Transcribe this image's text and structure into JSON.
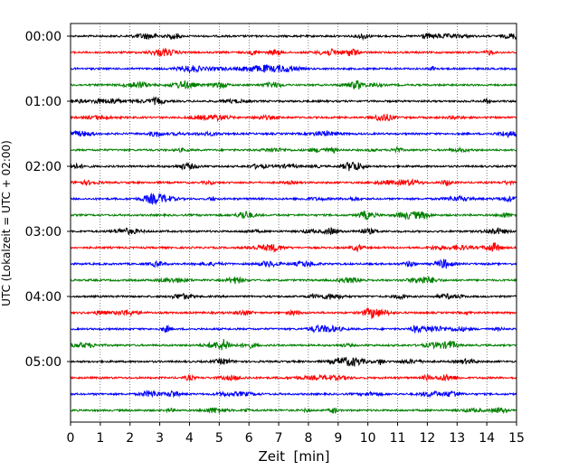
{
  "chart_data": {
    "type": "line",
    "subtype": "seismogram-helicorder",
    "title": "",
    "xlabel": "Zeit  [min]",
    "ylabel": "UTC (Lokalzeit = UTC + 02:00)",
    "xlim": [
      0,
      15
    ],
    "x_ticks": [
      "0",
      "1",
      "2",
      "3",
      "4",
      "5",
      "6",
      "7",
      "8",
      "9",
      "10",
      "11",
      "12",
      "13",
      "14",
      "15"
    ],
    "y_tick_labels": [
      "00:00",
      "01:00",
      "02:00",
      "03:00",
      "04:00",
      "05:00"
    ],
    "grid": "vertical dotted lines at each minute",
    "trace_colors": [
      "#000000",
      "#ff0000",
      "#0000ff",
      "#008000"
    ],
    "traces": [
      {
        "start": "00:00",
        "color_index": 0
      },
      {
        "start": "00:15",
        "color_index": 1
      },
      {
        "start": "00:30",
        "color_index": 2
      },
      {
        "start": "00:45",
        "color_index": 3
      },
      {
        "start": "01:00",
        "color_index": 0
      },
      {
        "start": "01:15",
        "color_index": 1
      },
      {
        "start": "01:30",
        "color_index": 2
      },
      {
        "start": "01:45",
        "color_index": 3
      },
      {
        "start": "02:00",
        "color_index": 0
      },
      {
        "start": "02:15",
        "color_index": 1
      },
      {
        "start": "02:30",
        "color_index": 2
      },
      {
        "start": "02:45",
        "color_index": 3
      },
      {
        "start": "03:00",
        "color_index": 0
      },
      {
        "start": "03:15",
        "color_index": 1
      },
      {
        "start": "03:30",
        "color_index": 2
      },
      {
        "start": "03:45",
        "color_index": 3
      },
      {
        "start": "04:00",
        "color_index": 0
      },
      {
        "start": "04:15",
        "color_index": 1
      },
      {
        "start": "04:30",
        "color_index": 2
      },
      {
        "start": "04:45",
        "color_index": 3
      },
      {
        "start": "05:00",
        "color_index": 0
      },
      {
        "start": "05:15",
        "color_index": 1
      },
      {
        "start": "05:30",
        "color_index": 2
      },
      {
        "start": "05:45",
        "color_index": 3
      }
    ]
  }
}
